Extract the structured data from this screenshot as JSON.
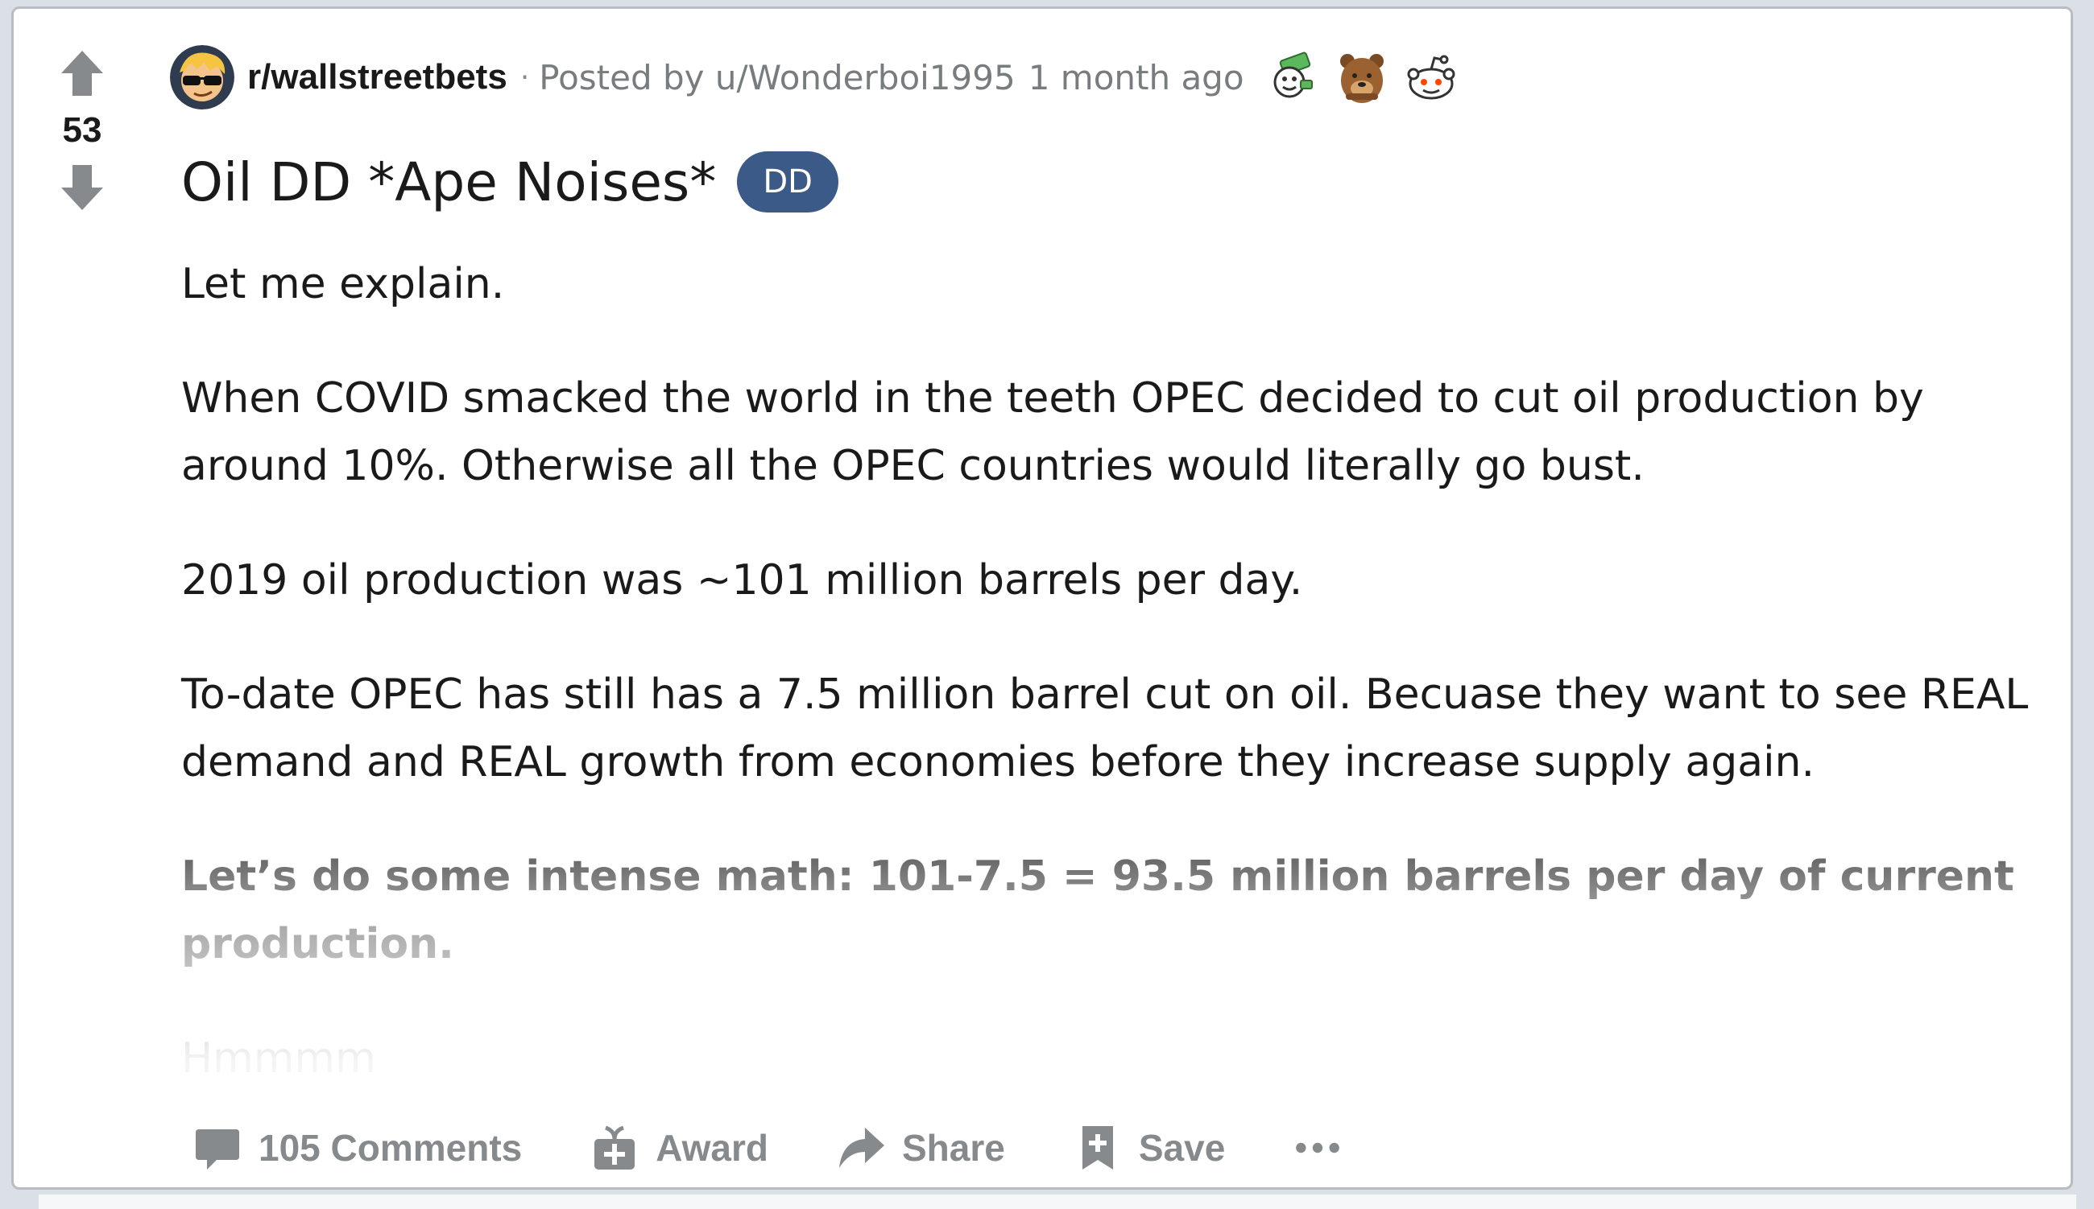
{
  "post": {
    "votes": "53",
    "subreddit": "r/wallstreetbets",
    "separator": "·",
    "posted_by": "Posted by u/Wonderboi1995",
    "time_ago": "1 month ago",
    "title": "Oil DD *Ape Noises*",
    "flair": "DD",
    "body": [
      "Let me explain.",
      "When COVID smacked the world in the teeth OPEC decided to cut oil production by around 10%. Otherwise all the OPEC countries would literally go bust.",
      "2019 oil production was ~101 million barrels per day.",
      "To-date OPEC has still has a 7.5 million barrel cut on oil. Becuase they want to see REAL demand and REAL growth from economies before they increase supply again.",
      "Let’s do some intense math: 101-7.5 = 93.5 million barrels per day of current production.",
      "Hmmmm"
    ]
  },
  "awards": [
    "money-award-icon",
    "bear-award-icon",
    "snoo-award-icon"
  ],
  "actions": {
    "comments": "105 Comments",
    "award": "Award",
    "share": "Share",
    "save": "Save"
  },
  "colors": {
    "flair_bg": "#3b5a88",
    "muted": "#878a8c",
    "text": "#1a1a1b"
  }
}
